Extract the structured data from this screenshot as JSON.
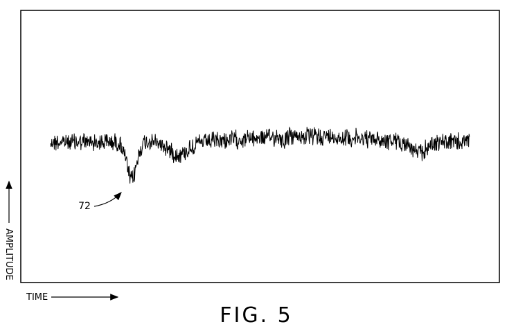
{
  "figure": {
    "label": "FIG. 5",
    "x_axis_label": "TIME",
    "y_axis_label": "AMPLITUDE",
    "callouts": [
      "72"
    ]
  }
}
